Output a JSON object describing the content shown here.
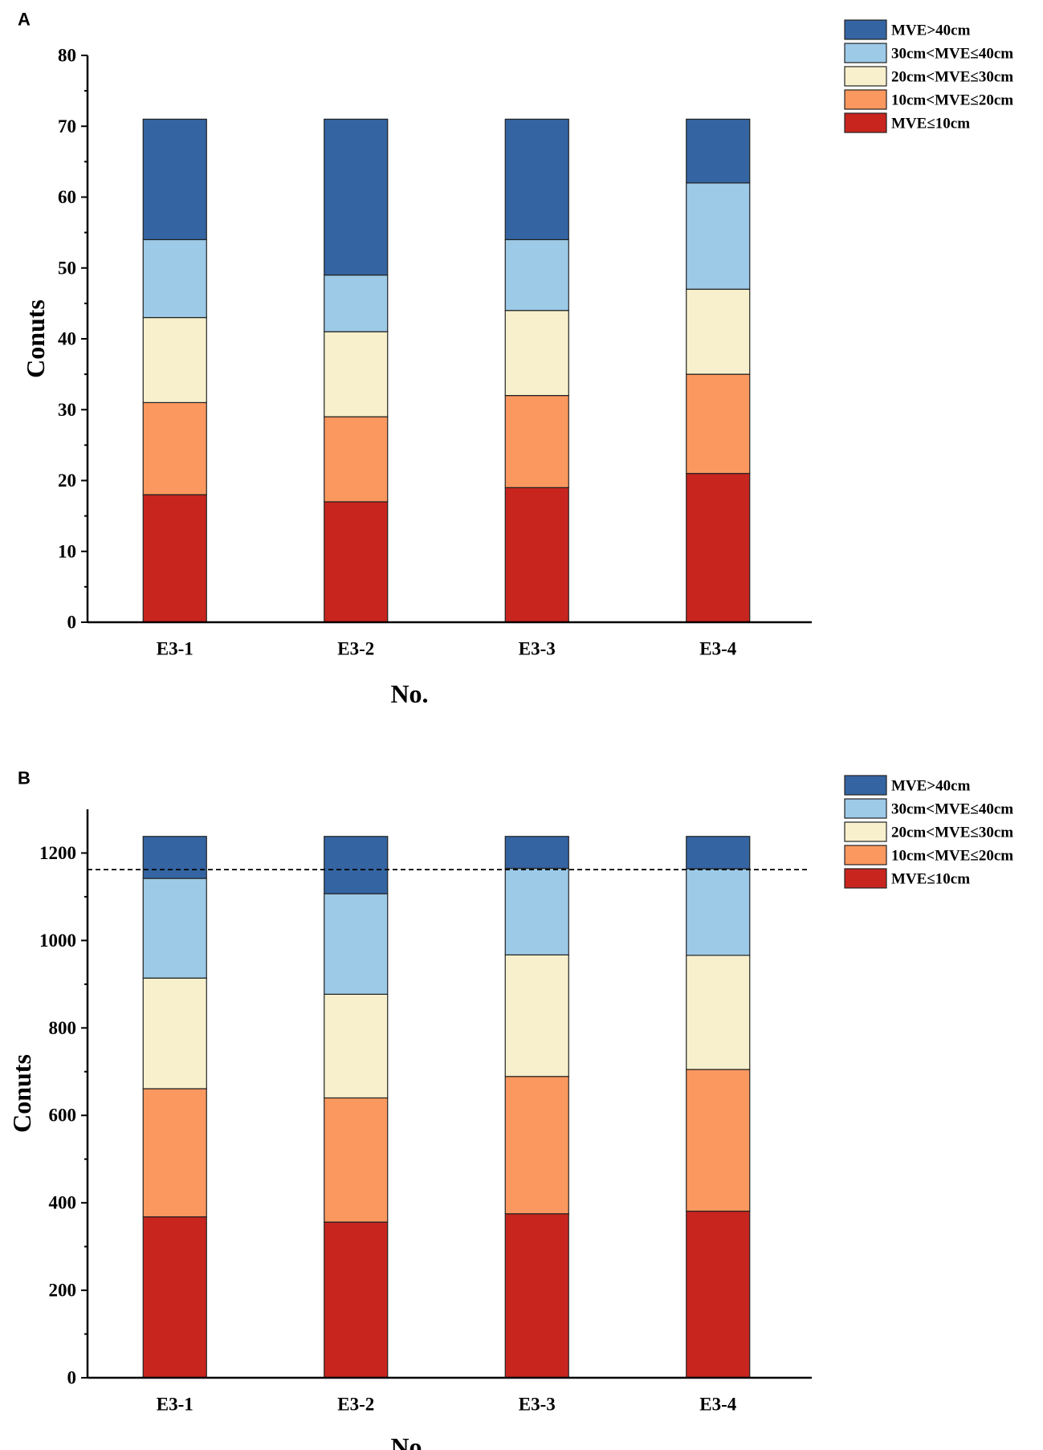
{
  "chart_data": [
    {
      "panel": "A",
      "type": "bar",
      "stacked": true,
      "categories": [
        "E3-1",
        "E3-2",
        "E3-3",
        "E3-4"
      ],
      "series": [
        {
          "name": "MVE≤10cm",
          "color": "#c8251f",
          "values": [
            18,
            17,
            19,
            21
          ]
        },
        {
          "name": "10cm<MVE≤20cm",
          "color": "#fb985f",
          "values": [
            13,
            12,
            13,
            14
          ]
        },
        {
          "name": "20cm<MVE≤30cm",
          "color": "#f8f0cc",
          "values": [
            12,
            12,
            12,
            12
          ]
        },
        {
          "name": "30cm<MVE≤40cm",
          "color": "#9ccae7",
          "values": [
            11,
            8,
            10,
            15
          ]
        },
        {
          "name": "MVE>40cm",
          "color": "#3464a2",
          "values": [
            17,
            22,
            17,
            9
          ]
        }
      ],
      "legend_order": [
        "MVE>40cm",
        "30cm<MVE≤40cm",
        "20cm<MVE≤30cm",
        "10cm<MVE≤20cm",
        "MVE≤10cm"
      ],
      "xlabel": "No.",
      "ylabel": "Conuts",
      "ylim": [
        0,
        80
      ],
      "yticks": [
        0,
        10,
        20,
        30,
        40,
        50,
        60,
        70,
        80
      ],
      "legend_position": "top-right"
    },
    {
      "panel": "B",
      "type": "bar",
      "stacked": true,
      "categories": [
        "E3-1",
        "E3-2",
        "E3-3",
        "E3-4"
      ],
      "series": [
        {
          "name": "MVE≤10cm",
          "color": "#c8251f",
          "values": [
            368,
            356,
            375,
            381
          ]
        },
        {
          "name": "10cm<MVE≤20cm",
          "color": "#fb985f",
          "values": [
            293,
            284,
            314,
            324
          ]
        },
        {
          "name": "20cm<MVE≤30cm",
          "color": "#f8f0cc",
          "values": [
            253,
            237,
            278,
            261
          ]
        },
        {
          "name": "30cm<MVE≤40cm",
          "color": "#9ccae7",
          "values": [
            228,
            230,
            198,
            198
          ]
        },
        {
          "name": "MVE>40cm",
          "color": "#3464a2",
          "values": [
            96,
            131,
            73,
            74
          ]
        }
      ],
      "legend_order": [
        "MVE>40cm",
        "30cm<MVE≤40cm",
        "20cm<MVE≤30cm",
        "10cm<MVE≤20cm",
        "MVE≤10cm"
      ],
      "reference_line": 1162,
      "xlabel": "No.",
      "ylabel": "Conuts",
      "ylim": [
        0,
        1300
      ],
      "yticks": [
        0,
        200,
        400,
        600,
        800,
        1000,
        1200
      ],
      "legend_position": "top-right"
    }
  ]
}
